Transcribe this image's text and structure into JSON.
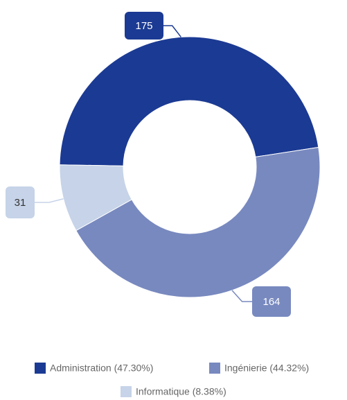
{
  "chart_data": {
    "type": "donut",
    "categories": [
      "Administration (47.30%)",
      "Ingénierie (44.32%)",
      "Informatique (8.38%)"
    ],
    "values": [
      175,
      164,
      31
    ],
    "colors": [
      "#1b3a93",
      "#7889bf",
      "#c6d3e8"
    ],
    "legend": "bottom"
  }
}
